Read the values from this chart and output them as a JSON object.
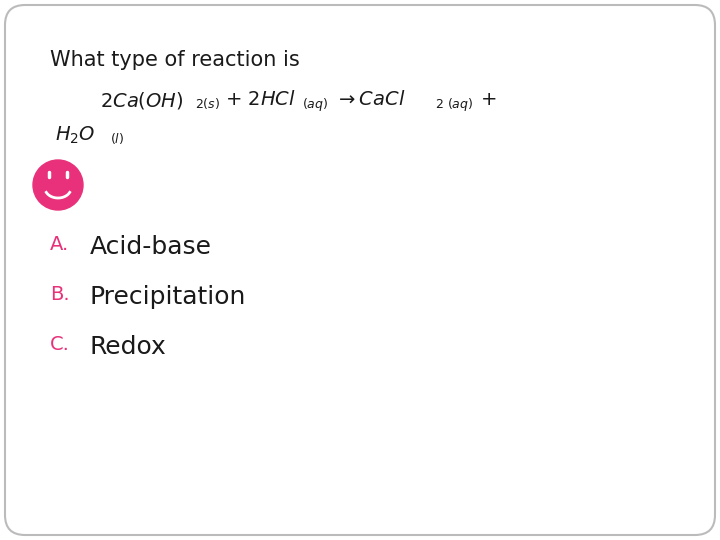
{
  "background_color": "#ffffff",
  "border_color": "#cccccc",
  "title_line": "What type of reaction is",
  "answer_a": "Acid-base",
  "answer_b": "Precipitation",
  "answer_c": "Redox",
  "label_a": "A.",
  "label_b": "B.",
  "label_c": "C.",
  "text_color": "#1a1a1a",
  "pink_color": "#e8317a",
  "label_fontsize": 14,
  "answer_fontsize": 18,
  "title_fontsize": 15,
  "eq_fontsize": 14,
  "eq_sub_fontsize": 9
}
